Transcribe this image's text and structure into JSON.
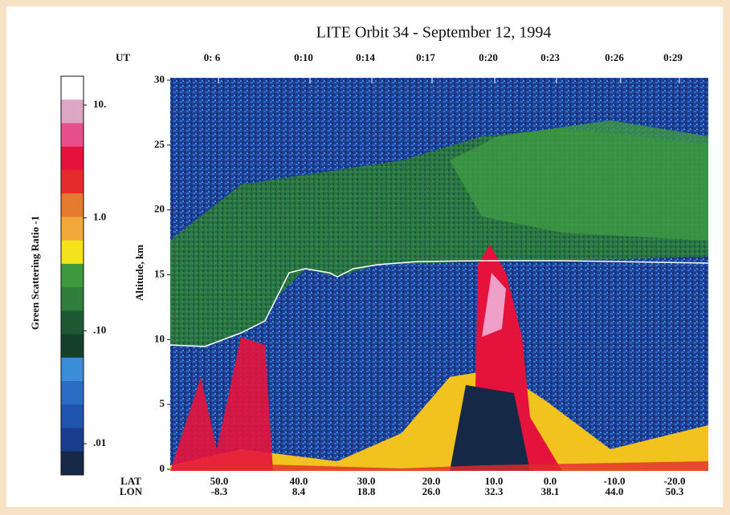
{
  "chart_data": {
    "type": "heatmap",
    "title": "LITE Orbit 34 - September 12, 1994",
    "y_label": "Altitude, km",
    "ylim": [
      0,
      30
    ],
    "yticks": [
      0,
      5,
      10,
      15,
      20,
      25,
      30
    ],
    "top_axis_label": "UT",
    "top_ticks": [
      "0: 6",
      "0:10",
      "0:14",
      "0:17",
      "0:20",
      "0:23",
      "0:26",
      "0:29"
    ],
    "bottom_axis_labels": [
      "LAT",
      "LON"
    ],
    "bottom_ticks": [
      {
        "lat": "50.0",
        "lon": "-8.3"
      },
      {
        "lat": "40.0",
        "lon": "8.4"
      },
      {
        "lat": "30.0",
        "lon": "18.8"
      },
      {
        "lat": "20.0",
        "lon": "26.0"
      },
      {
        "lat": "10.0",
        "lon": "32.3"
      },
      {
        "lat": "0.0",
        "lon": "38.1"
      },
      {
        "lat": "-10.0",
        "lon": "44.0"
      },
      {
        "lat": "-20.0",
        "lon": "50.3"
      }
    ],
    "colorbar": {
      "label": "Green Scattering Ratio -1",
      "log": true,
      "lim": [
        0.0053,
        18
      ],
      "ticks": [
        {
          "value": 0.01,
          "label": ".01"
        },
        {
          "value": 0.1,
          "label": ".10"
        },
        {
          "value": 1,
          "label": "1.0"
        },
        {
          "value": 10,
          "label": "10."
        }
      ],
      "colors": [
        "#ffffff",
        "#dca7c4",
        "#e8508c",
        "#e5133c",
        "#e52a2a",
        "#e67a2e",
        "#f2a93a",
        "#f4e21a",
        "#3c9a3c",
        "#2e7d3a",
        "#1d5a34",
        "#14402c",
        "#3a8ed8",
        "#2a6cc4",
        "#1f55b0",
        "#1a3c8c",
        "#152846"
      ]
    }
  }
}
